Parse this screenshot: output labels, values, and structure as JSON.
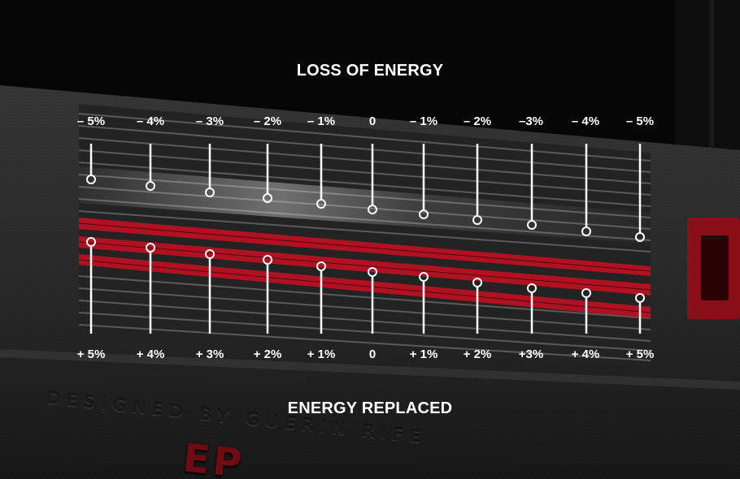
{
  "titles": {
    "top": "LOSS OF ENERGY",
    "bottom": "ENERGY REPLACED"
  },
  "top_labels": [
    "– 5%",
    "– 4%",
    "– 3%",
    "– 2%",
    "– 1%",
    "0",
    "– 1%",
    "– 2%",
    "–3%",
    "– 4%",
    "– 5%"
  ],
  "bottom_labels": [
    "+ 5%",
    "+ 4%",
    "+ 3%",
    "+ 2%",
    "+ 1%",
    "0",
    "+ 1%",
    "+ 2%",
    "+3%",
    "+ 4%",
    "+ 5%"
  ],
  "engraving": {
    "text": "DESIGNED BY GUERIN RIFE",
    "brand": "EP"
  },
  "colors": {
    "background": "#060606",
    "text": "#ffffff",
    "accent_red": "#b01222",
    "groove_dark": "#2a2a2a"
  }
}
